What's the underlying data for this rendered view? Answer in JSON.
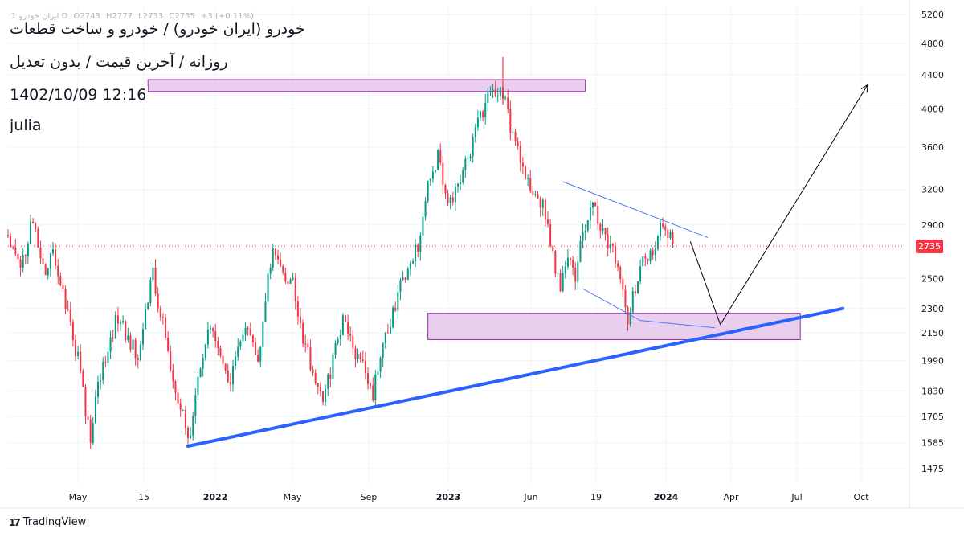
{
  "chart_data": {
    "type": "candlestick",
    "title_lines": [
      "خودرو (ایران خودرو) / خودرو و ساخت قطعات",
      "روزانه / آخرین قیمت / بدون تعدیل",
      "1402/10/09 12:16",
      "julia"
    ],
    "ohlc_header": {
      "series": "ایران خودرو 1 D",
      "open": "O2743",
      "high": "H2777",
      "low": "L2733",
      "close": "C2735",
      "change": "+3 (+0.11%)"
    },
    "x_tick_labels": [
      "May",
      "15",
      "2022",
      "May",
      "Sep",
      "2023",
      "Jun",
      "19",
      "2024",
      "Apr",
      "Jul",
      "Oct"
    ],
    "x_tick_bold": [
      "2022",
      "2023",
      "2024"
    ],
    "y_scale": "log",
    "y_range": [
      1380,
      5400
    ],
    "y_tick_labels": [
      1475,
      1585,
      1705,
      1830,
      1990,
      2150,
      2300,
      2500,
      2735,
      2900,
      3200,
      3600,
      4000,
      4400,
      4800,
      5200
    ],
    "last_price": 2735,
    "last_price_label": "2735",
    "price_path": [
      [
        0.0,
        2820
      ],
      [
        2.0,
        2600
      ],
      [
        4.0,
        2760
      ],
      [
        5.0,
        2980
      ],
      [
        7.0,
        2550
      ],
      [
        9.0,
        2700
      ],
      [
        12.0,
        2250
      ],
      [
        14.0,
        2000
      ],
      [
        15.5,
        1740
      ],
      [
        16.5,
        1620
      ],
      [
        18.0,
        1880
      ],
      [
        20.0,
        2080
      ],
      [
        22.0,
        2250
      ],
      [
        24.0,
        2120
      ],
      [
        26.0,
        2000
      ],
      [
        28.0,
        2380
      ],
      [
        29.0,
        2520
      ],
      [
        31.0,
        2200
      ],
      [
        33.0,
        1880
      ],
      [
        35.0,
        1720
      ],
      [
        36.0,
        1580
      ],
      [
        38.0,
        1900
      ],
      [
        40.0,
        2150
      ],
      [
        42.0,
        2080
      ],
      [
        44.0,
        1850
      ],
      [
        46.0,
        2100
      ],
      [
        48.0,
        2200
      ],
      [
        50.0,
        2000
      ],
      [
        52.0,
        2500
      ],
      [
        53.0,
        2680
      ],
      [
        55.0,
        2550
      ],
      [
        57.0,
        2450
      ],
      [
        59.0,
        2100
      ],
      [
        61.0,
        1950
      ],
      [
        63.0,
        1760
      ],
      [
        65.0,
        2000
      ],
      [
        67.0,
        2220
      ],
      [
        69.0,
        2050
      ],
      [
        71.0,
        1950
      ],
      [
        73.0,
        1810
      ],
      [
        75.0,
        2100
      ],
      [
        76.0,
        2150
      ],
      [
        78.0,
        2400
      ],
      [
        80.0,
        2520
      ],
      [
        82.0,
        2760
      ],
      [
        84.0,
        3200
      ],
      [
        86.0,
        3520
      ],
      [
        88.0,
        3100
      ],
      [
        90.0,
        3180
      ],
      [
        92.0,
        3500
      ],
      [
        94.0,
        3850
      ],
      [
        96.0,
        4150
      ],
      [
        98.0,
        4230
      ],
      [
        99.5,
        4050
      ],
      [
        101.0,
        3720
      ],
      [
        103.0,
        3400
      ],
      [
        105.0,
        3200
      ],
      [
        107.0,
        3080
      ],
      [
        109.0,
        2650
      ],
      [
        110.5,
        2430
      ],
      [
        112.0,
        2680
      ],
      [
        113.5,
        2470
      ],
      [
        115.0,
        2880
      ],
      [
        117.0,
        3080
      ],
      [
        119.0,
        2870
      ],
      [
        121.0,
        2700
      ],
      [
        122.5,
        2480
      ],
      [
        124.0,
        2240
      ],
      [
        125.5,
        2450
      ],
      [
        127.0,
        2620
      ],
      [
        128.5,
        2650
      ],
      [
        130.0,
        2850
      ],
      [
        131.0,
        2900
      ],
      [
        132.5,
        2780
      ],
      [
        133.2,
        2735
      ]
    ],
    "annotations": {
      "rising_trendline": [
        [
          36.0,
          1570
        ],
        [
          167.0,
          2300
        ]
      ],
      "upper_channel_line": [
        [
          111.0,
          3270
        ],
        [
          140.0,
          2800
        ]
      ],
      "lower_channel_line": [
        [
          115.0,
          2430
        ],
        [
          126.5,
          2225
        ],
        [
          141.5,
          2180
        ]
      ],
      "resistance_zone": {
        "x": [
          28.0,
          115.5
        ],
        "y": [
          4200,
          4340
        ]
      },
      "support_zone": {
        "x": [
          84.0,
          158.5
        ],
        "y": [
          2110,
          2270
        ]
      },
      "projection_path": [
        [
          136.5,
          2770
        ],
        [
          142.5,
          2200
        ],
        [
          172.0,
          4280
        ]
      ]
    }
  },
  "branding": {
    "name": "TradingView",
    "icon": "tradingview-logo-icon",
    "icon_glyph": "17"
  },
  "colors": {
    "up": "#089981",
    "down": "#f23645",
    "trendline": "#2962ff",
    "channel": "#4c7bf0",
    "zone_fill": "#e1bee7",
    "zone_stroke": "#9c27b0",
    "price_tag": "#f23645"
  }
}
